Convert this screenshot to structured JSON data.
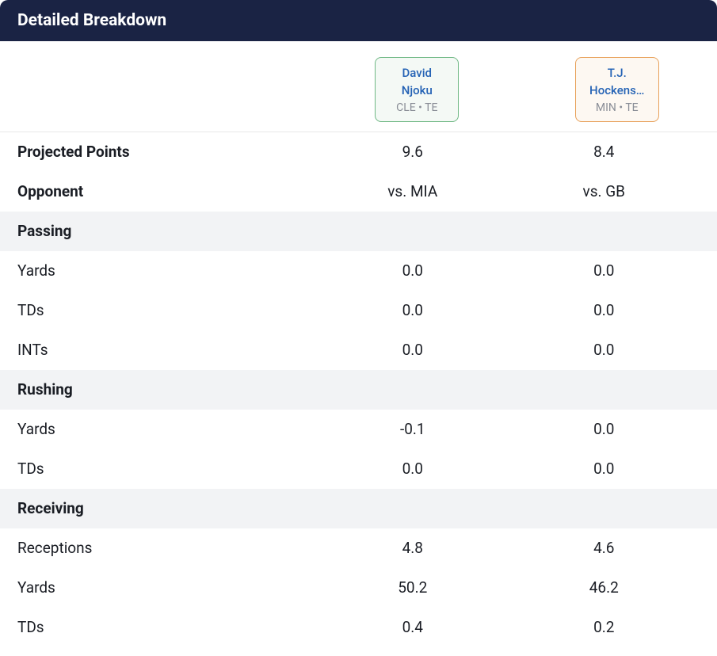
{
  "header": {
    "title": "Detailed Breakdown"
  },
  "players": [
    {
      "name_line1": "David",
      "name_line2": "Njoku",
      "team": "CLE",
      "sep": " • ",
      "pos": "TE"
    },
    {
      "name_line1": "T.J.",
      "name_line2": "Hockens…",
      "team": "MIN",
      "sep": " • ",
      "pos": "TE"
    }
  ],
  "rows": {
    "projected_label": "Projected Points",
    "projected": [
      "9.6",
      "8.4"
    ],
    "opponent_label": "Opponent",
    "opponent": [
      "vs. MIA",
      "vs. GB"
    ],
    "passing_label": "Passing",
    "passing_yards_label": "Yards",
    "passing_yards": [
      "0.0",
      "0.0"
    ],
    "passing_tds_label": "TDs",
    "passing_tds": [
      "0.0",
      "0.0"
    ],
    "passing_ints_label": "INTs",
    "passing_ints": [
      "0.0",
      "0.0"
    ],
    "rushing_label": "Rushing",
    "rushing_yards_label": "Yards",
    "rushing_yards": [
      "-0.1",
      "0.0"
    ],
    "rushing_tds_label": "TDs",
    "rushing_tds": [
      "0.0",
      "0.0"
    ],
    "receiving_label": "Receiving",
    "receptions_label": "Receptions",
    "receptions": [
      "4.8",
      "4.6"
    ],
    "recv_yards_label": "Yards",
    "recv_yards": [
      "50.2",
      "46.2"
    ],
    "recv_tds_label": "TDs",
    "recv_tds": [
      "0.4",
      "0.2"
    ]
  },
  "colors": {
    "header_bg": "#1a2344",
    "player1_border": "#6fb884",
    "player1_bg": "#f4f9f5",
    "player2_border": "#e8a15a",
    "player2_bg": "#fdf8f2",
    "section_bg": "#f2f3f5",
    "link_color": "#2563b5",
    "meta_color": "#8a8e97"
  }
}
